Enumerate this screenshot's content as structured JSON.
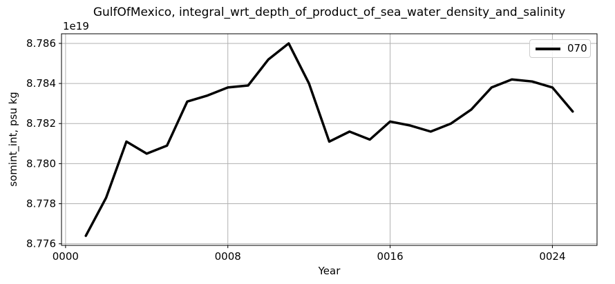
{
  "chart_data": {
    "type": "line",
    "title": "GulfOfMexico, integral_wrt_depth_of_product_of_sea_water_density_and_salinity",
    "xlabel": "Year",
    "ylabel": "somint_int, psu kg",
    "offset_text": "1e19",
    "x": [
      1,
      2,
      3,
      4,
      5,
      6,
      7,
      8,
      9,
      10,
      11,
      12,
      13,
      14,
      15,
      16,
      17,
      18,
      19,
      20,
      21,
      22,
      23,
      24,
      25
    ],
    "series": [
      {
        "name": "070",
        "color": "#000000",
        "values": [
          8.7764,
          8.7783,
          8.7811,
          8.7805,
          8.7809,
          8.7831,
          8.7834,
          8.7838,
          8.7839,
          8.7852,
          8.786,
          8.784,
          8.7811,
          8.7816,
          8.7812,
          8.7821,
          8.7819,
          8.7816,
          8.782,
          8.7827,
          8.7838,
          8.7842,
          8.7841,
          8.7838,
          8.7826
        ]
      }
    ],
    "value_multiplier": "1e19",
    "xticks": {
      "values": [
        0,
        8,
        16,
        24
      ],
      "labels": [
        "0000",
        "0008",
        "0016",
        "0024"
      ]
    },
    "yticks": {
      "values": [
        8.776,
        8.778,
        8.78,
        8.782,
        8.784,
        8.786
      ],
      "labels": [
        "8.776",
        "8.778",
        "8.780",
        "8.782",
        "8.784",
        "8.786"
      ]
    },
    "xlim": [
      -0.2,
      26.2
    ],
    "ylim": [
      8.77592,
      8.78648
    ],
    "grid": true,
    "legend_position": "upper right",
    "colors": {
      "line": "#000000",
      "grid": "#b0b0b0",
      "spine": "#000000",
      "background": "#ffffff",
      "text": "#000000"
    }
  }
}
